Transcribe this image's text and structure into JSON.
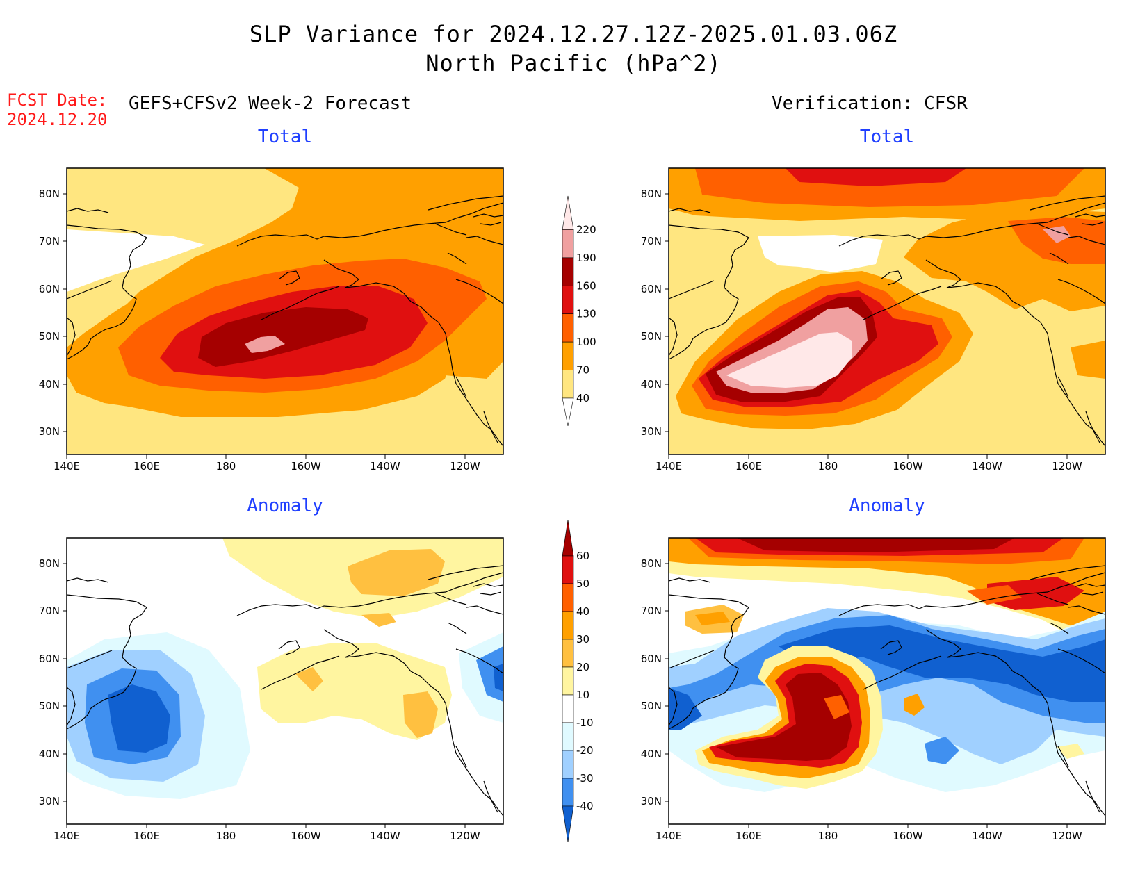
{
  "title": {
    "line1": "SLP Variance for 2024.12.27.12Z-2025.01.03.06Z",
    "line2": "North Pacific (hPa^2)"
  },
  "fcst": {
    "label": "FCST Date:",
    "date": "2024.12.20"
  },
  "left_header": "GEFS+CFSv2 Week-2 Forecast",
  "right_header": "Verification: CFSR",
  "panels": [
    {
      "title": "Total"
    },
    {
      "title": "Total"
    },
    {
      "title": "Anomaly"
    },
    {
      "title": "Anomaly"
    }
  ],
  "axes": {
    "lat_labels": [
      "80N",
      "70N",
      "60N",
      "50N",
      "40N",
      "30N"
    ],
    "lon_labels": [
      "140E",
      "160E",
      "180",
      "160W",
      "140W",
      "120W"
    ]
  },
  "colorbars": {
    "total": {
      "levels": [
        "40",
        "70",
        "100",
        "130",
        "160",
        "190",
        "220"
      ],
      "colors": [
        "#ffe680",
        "#ffa000",
        "#ff6000",
        "#e01010",
        "#a50000",
        "#f0a0a0",
        "#ffe8e8"
      ]
    },
    "anomaly": {
      "levels": [
        "60",
        "50",
        "40",
        "30",
        "20",
        "10",
        "-10",
        "-20",
        "-30",
        "-40"
      ],
      "colors": [
        "#a50000",
        "#e01010",
        "#ff6000",
        "#ffa000",
        "#ffc040",
        "#fff5a0",
        "#ffffff",
        "#e0faff",
        "#a0d0ff",
        "#4090f0",
        "#1060d0"
      ]
    }
  }
}
